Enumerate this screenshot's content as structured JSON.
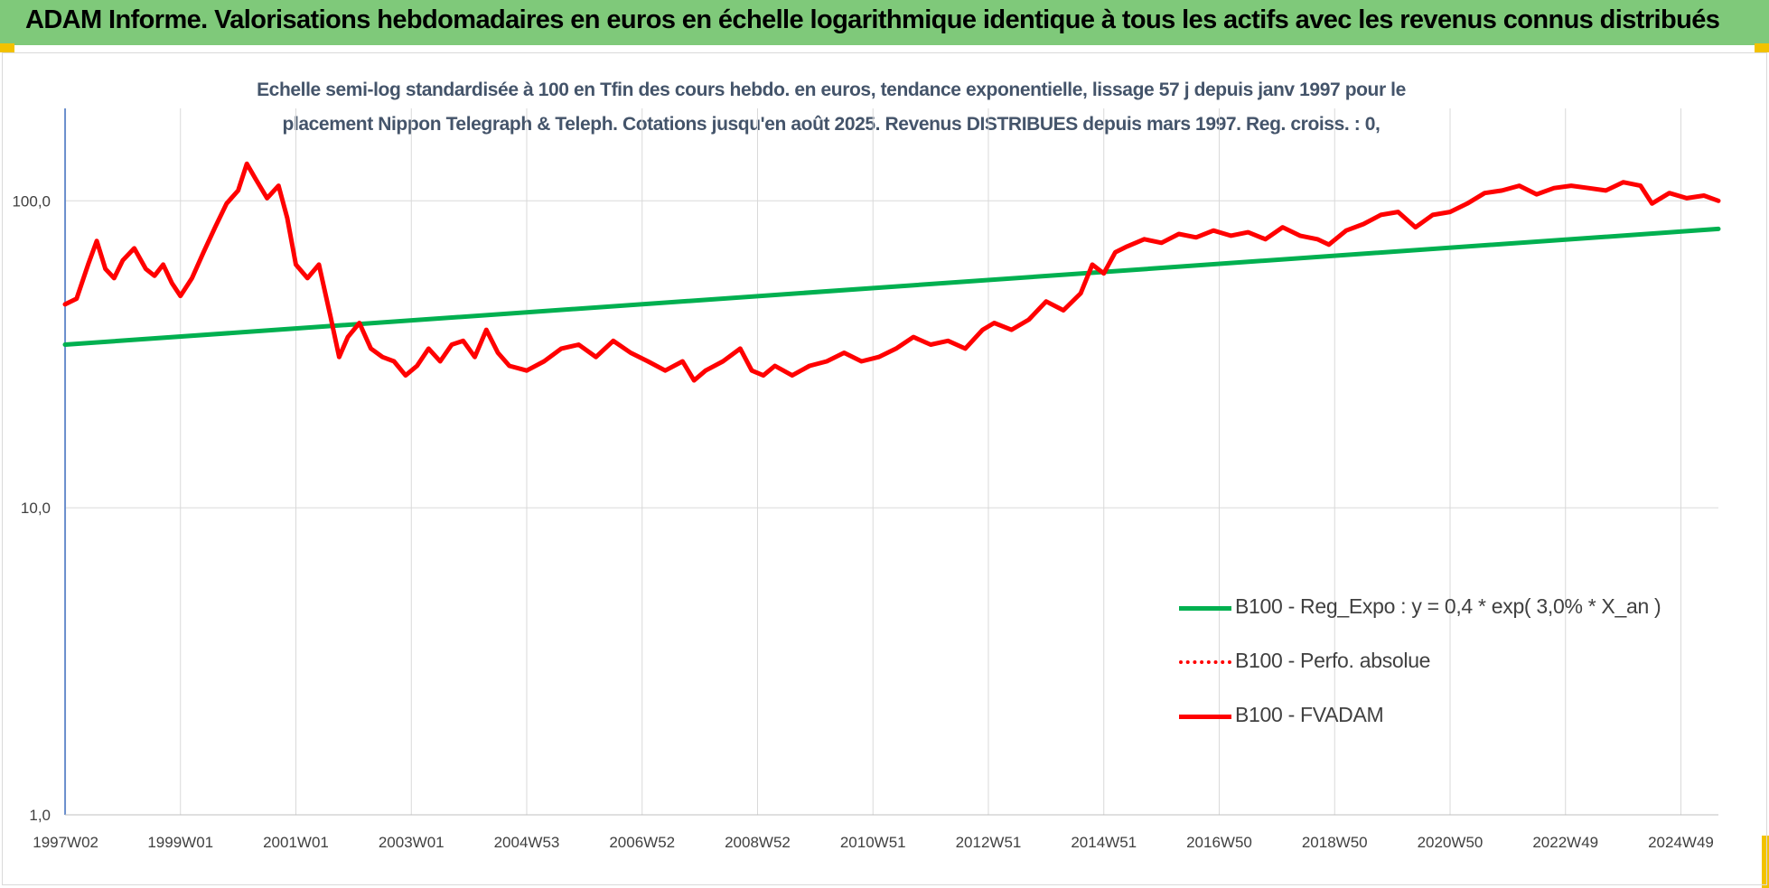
{
  "header": {
    "title": "ADAM Informe. Valorisations hebdomadaires en euros en échelle logarithmique identique à tous les actifs avec les revenus connus distribués"
  },
  "chart_data": {
    "type": "line",
    "title_line1": "Echelle semi-log standardisée à 100 en Tfin des cours hebdo. en euros, tendance exponentielle, lissage 57 j depuis janv 1997 pour le",
    "title_line2": "placement Nippon Telegraph & Teleph. Cotations jusqu'en août 2025. Revenus DISTRIBUES depuis mars 1997. Reg. croiss. : 0,",
    "y_scale": "log",
    "ylim": [
      1,
      200
    ],
    "y_ticks": [
      1,
      10,
      100
    ],
    "y_tick_labels": [
      "1,0",
      "10,0",
      "100,0"
    ],
    "xlim": [
      1997.0,
      2025.65
    ],
    "x_ticks": [
      1997.01,
      1999.0,
      2001.0,
      2003.0,
      2005.0,
      2007.0,
      2009.0,
      2011.0,
      2013.0,
      2015.0,
      2017.0,
      2019.0,
      2021.0,
      2023.0,
      2025.0
    ],
    "x_tick_labels": [
      "1997W02",
      "1999W01",
      "2001W01",
      "2003W01",
      "2004W53",
      "2006W52",
      "2008W52",
      "2010W51",
      "2012W51",
      "2014W51",
      "2016W50",
      "2018W50",
      "2020W50",
      "2022W49",
      "2024W49"
    ],
    "grid": "vertical and horizontal",
    "legend_position": "lower-right",
    "series": [
      {
        "name": "B100 - Reg_Expo : y = 0,4 * exp( 3,0% *  X_an )",
        "color": "#00b050",
        "style": "solid",
        "x": [
          1997.0,
          2025.65
        ],
        "y": [
          34,
          81
        ]
      },
      {
        "name": "B100 - Perfo. absolue",
        "color": "#ff0000",
        "style": "dotted",
        "x": [],
        "y": []
      },
      {
        "name": "B100 - FVADAM",
        "color": "#ff0000",
        "style": "solid",
        "x": [
          1997.0,
          1997.2,
          1997.4,
          1997.55,
          1997.7,
          1997.85,
          1998.0,
          1998.2,
          1998.4,
          1998.55,
          1998.7,
          1998.85,
          1999.0,
          1999.2,
          1999.4,
          1999.6,
          1999.8,
          2000.0,
          2000.15,
          2000.3,
          2000.5,
          2000.7,
          2000.85,
          2001.0,
          2001.2,
          2001.4,
          2001.6,
          2001.75,
          2001.9,
          2002.1,
          2002.3,
          2002.5,
          2002.7,
          2002.9,
          2003.1,
          2003.3,
          2003.5,
          2003.7,
          2003.9,
          2004.1,
          2004.3,
          2004.5,
          2004.7,
          2005.0,
          2005.3,
          2005.6,
          2005.9,
          2006.2,
          2006.5,
          2006.8,
          2007.1,
          2007.4,
          2007.7,
          2007.9,
          2008.1,
          2008.4,
          2008.7,
          2008.9,
          2009.1,
          2009.3,
          2009.6,
          2009.9,
          2010.2,
          2010.5,
          2010.8,
          2011.1,
          2011.4,
          2011.7,
          2012.0,
          2012.3,
          2012.6,
          2012.9,
          2013.1,
          2013.4,
          2013.7,
          2014.0,
          2014.3,
          2014.6,
          2014.8,
          2015.0,
          2015.2,
          2015.4,
          2015.7,
          2016.0,
          2016.3,
          2016.6,
          2016.9,
          2017.2,
          2017.5,
          2017.8,
          2018.1,
          2018.4,
          2018.7,
          2018.9,
          2019.2,
          2019.5,
          2019.8,
          2020.1,
          2020.4,
          2020.7,
          2021.0,
          2021.3,
          2021.6,
          2021.9,
          2022.2,
          2022.5,
          2022.8,
          2023.1,
          2023.4,
          2023.7,
          2024.0,
          2024.3,
          2024.5,
          2024.8,
          2025.1,
          2025.4,
          2025.65
        ],
        "y": [
          46,
          48,
          62,
          74,
          60,
          56,
          64,
          70,
          60,
          57,
          62,
          54,
          49,
          56,
          68,
          82,
          98,
          108,
          132,
          118,
          102,
          112,
          88,
          62,
          56,
          62,
          42,
          31,
          36,
          40,
          33,
          31,
          30,
          27,
          29,
          33,
          30,
          34,
          35,
          31,
          38,
          32,
          29,
          28,
          30,
          33,
          34,
          31,
          35,
          32,
          30,
          28,
          30,
          26,
          28,
          30,
          33,
          28,
          27,
          29,
          27,
          29,
          30,
          32,
          30,
          31,
          33,
          36,
          34,
          35,
          33,
          38,
          40,
          38,
          41,
          47,
          44,
          50,
          62,
          58,
          68,
          71,
          75,
          73,
          78,
          76,
          80,
          77,
          79,
          75,
          82,
          77,
          75,
          72,
          80,
          84,
          90,
          92,
          82,
          90,
          92,
          98,
          106,
          108,
          112,
          105,
          110,
          112,
          110,
          108,
          115,
          112,
          98,
          106,
          102,
          104,
          100
        ]
      }
    ]
  }
}
